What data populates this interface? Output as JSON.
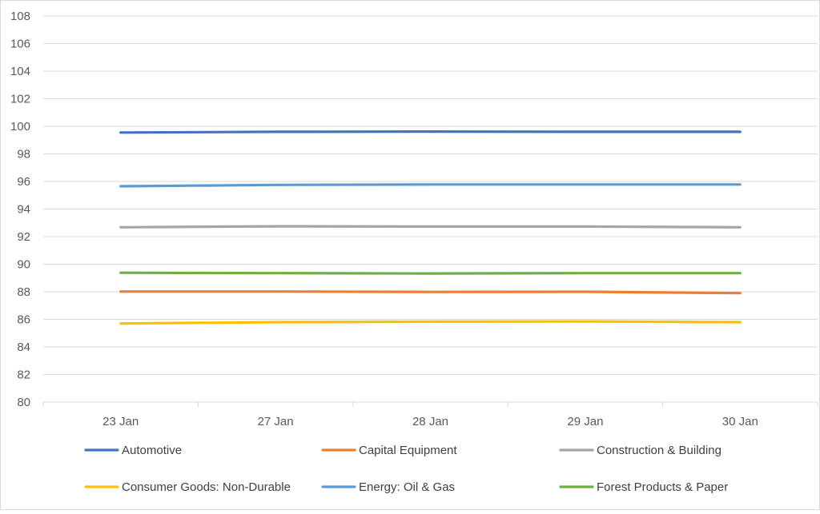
{
  "chart_data": {
    "type": "line",
    "title": "",
    "xlabel": "",
    "ylabel": "",
    "categories": [
      "23 Jan",
      "27 Jan",
      "28 Jan",
      "29 Jan",
      "30 Jan"
    ],
    "ylim": [
      80,
      108
    ],
    "yticks": [
      80,
      82,
      84,
      86,
      88,
      90,
      92,
      94,
      96,
      98,
      100,
      102,
      104,
      106,
      108
    ],
    "grid": "horizontal",
    "legend_position": "bottom",
    "series": [
      {
        "name": "Automotive",
        "color": "#4472C4",
        "values": [
          99.55,
          99.6,
          99.62,
          99.6,
          99.6
        ]
      },
      {
        "name": "Capital Equipment",
        "color": "#ED7D31",
        "values": [
          88.02,
          88.02,
          87.99,
          88.0,
          87.9
        ]
      },
      {
        "name": "Construction & Building",
        "color": "#A5A5A5",
        "values": [
          92.68,
          92.75,
          92.73,
          92.73,
          92.68
        ]
      },
      {
        "name": "Consumer Goods: Non-Durable",
        "color": "#FFC000",
        "values": [
          85.7,
          85.8,
          85.83,
          85.85,
          85.8
        ]
      },
      {
        "name": "Energy: Oil & Gas",
        "color": "#5B9BD5",
        "values": [
          95.65,
          95.75,
          95.78,
          95.78,
          95.78
        ]
      },
      {
        "name": "Forest Products & Paper",
        "color": "#70AD47",
        "values": [
          89.38,
          89.35,
          89.33,
          89.35,
          89.35
        ]
      }
    ]
  }
}
